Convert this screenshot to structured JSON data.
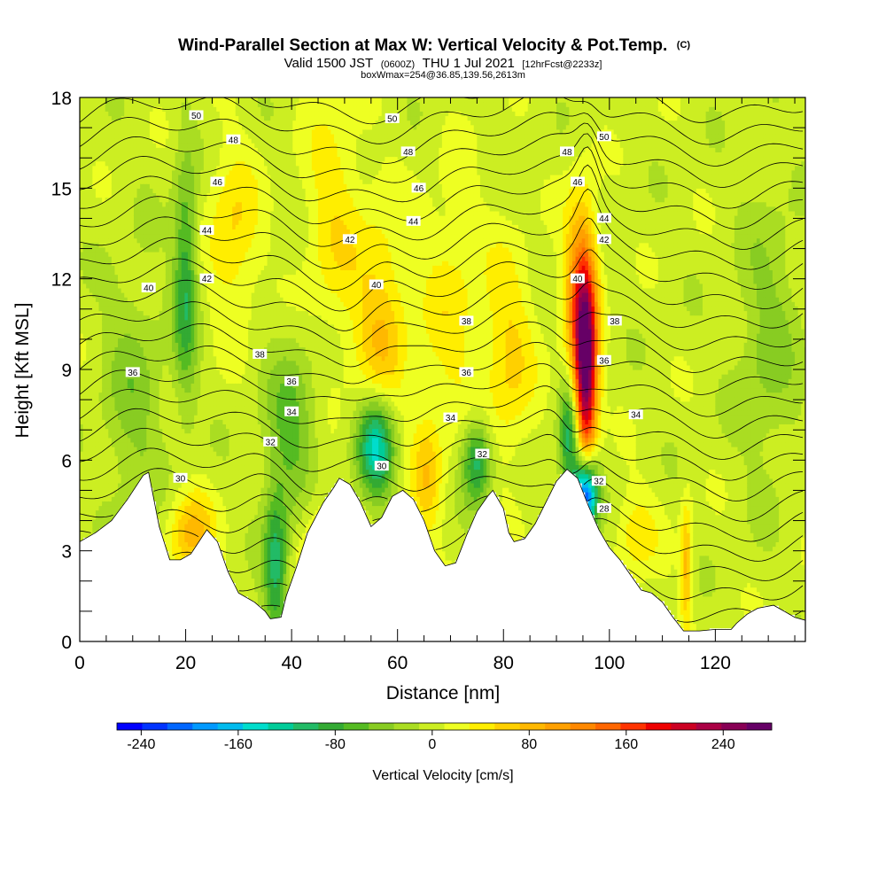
{
  "chart_data": {
    "type": "heatmap",
    "title": "Wind-Parallel Section at Max W: Vertical Velocity & Pot.Temp.",
    "title_mark": "(C)",
    "subtitle_valid": "Valid 1500 JST",
    "subtitle_utc": "(0600Z)",
    "subtitle_date": "THU 1 Jul 2021",
    "subtitle_fcst": "[12hrFcst@2233z]",
    "subtitle_box": "boxWmax=254@36.85,139.56,2613m",
    "xlabel": "Distance [nm]",
    "ylabel": "Height [Kft MSL]",
    "xlim": [
      0,
      137
    ],
    "ylim": [
      0,
      18
    ],
    "x_ticks": [
      0,
      20,
      40,
      60,
      80,
      100,
      120
    ],
    "y_ticks": [
      0,
      3,
      6,
      9,
      12,
      15,
      18
    ],
    "x_tick_labels": [
      "0",
      "20",
      "40",
      "60",
      "80",
      "100",
      "120"
    ],
    "y_tick_labels": [
      "0",
      "3",
      "6",
      "9",
      "12",
      "15",
      "18"
    ],
    "colorbar": {
      "title": "Vertical Velocity [cm/s]",
      "range": [
        -260,
        280
      ],
      "ticks": [
        -240,
        -160,
        -80,
        0,
        80,
        160,
        240
      ],
      "tick_labels": [
        "-240",
        "-160",
        "-80",
        "0",
        "80",
        "160",
        "240"
      ],
      "colors": [
        "#0000ff",
        "#0033ff",
        "#0066ff",
        "#0099ff",
        "#00bbee",
        "#00ddcc",
        "#00cc99",
        "#22bb66",
        "#33aa33",
        "#55bb22",
        "#88cc22",
        "#aadd22",
        "#ccee22",
        "#eeff22",
        "#ffee00",
        "#ffd000",
        "#ffb800",
        "#ffa000",
        "#ff8800",
        "#ff6600",
        "#ff3300",
        "#ee0000",
        "#cc0022",
        "#aa0044",
        "#880055",
        "#660066"
      ]
    },
    "terrain": [
      [
        0,
        3.3
      ],
      [
        3,
        3.6
      ],
      [
        6,
        4.0
      ],
      [
        9,
        4.7
      ],
      [
        12,
        5.5
      ],
      [
        13,
        5.6
      ],
      [
        15,
        3.8
      ],
      [
        17,
        2.7
      ],
      [
        19,
        2.7
      ],
      [
        21,
        2.9
      ],
      [
        24,
        3.7
      ],
      [
        26,
        3.3
      ],
      [
        28,
        2.3
      ],
      [
        30,
        1.6
      ],
      [
        33,
        1.3
      ],
      [
        35,
        1.0
      ],
      [
        36,
        0.75
      ],
      [
        38,
        0.8
      ],
      [
        39,
        1.5
      ],
      [
        41,
        2.5
      ],
      [
        43,
        3.6
      ],
      [
        46,
        4.6
      ],
      [
        48,
        5.1
      ],
      [
        49,
        5.4
      ],
      [
        51,
        5.2
      ],
      [
        53,
        4.6
      ],
      [
        55,
        3.8
      ],
      [
        57,
        4.1
      ],
      [
        59,
        4.8
      ],
      [
        61,
        5.0
      ],
      [
        63,
        4.7
      ],
      [
        65,
        4.0
      ],
      [
        67,
        3.0
      ],
      [
        69,
        2.5
      ],
      [
        71,
        2.6
      ],
      [
        73,
        3.5
      ],
      [
        75,
        4.3
      ],
      [
        77,
        4.8
      ],
      [
        78,
        5.0
      ],
      [
        80,
        4.4
      ],
      [
        81,
        3.6
      ],
      [
        82,
        3.3
      ],
      [
        84,
        3.4
      ],
      [
        86,
        3.9
      ],
      [
        88,
        4.6
      ],
      [
        90,
        5.3
      ],
      [
        92,
        5.7
      ],
      [
        94,
        5.4
      ],
      [
        96,
        4.5
      ],
      [
        98,
        3.7
      ],
      [
        100,
        3.1
      ],
      [
        102,
        2.7
      ],
      [
        104,
        2.2
      ],
      [
        106,
        1.7
      ],
      [
        108,
        1.6
      ],
      [
        110,
        1.3
      ],
      [
        112,
        0.8
      ],
      [
        114,
        0.35
      ],
      [
        117,
        0.35
      ],
      [
        120,
        0.4
      ],
      [
        123,
        0.4
      ],
      [
        124,
        0.6
      ],
      [
        126,
        0.9
      ],
      [
        128,
        1.1
      ],
      [
        131,
        1.2
      ],
      [
        133,
        1.0
      ],
      [
        135,
        0.8
      ],
      [
        137,
        0.7
      ]
    ],
    "w_features": [
      {
        "x": 95.5,
        "z": 8.8,
        "amp": 250,
        "sx": 1.5,
        "sz": 2.3
      },
      {
        "x": 94.5,
        "z": 11.5,
        "amp": 120,
        "sx": 2.2,
        "sz": 2.2
      },
      {
        "x": 95.5,
        "z": 4.9,
        "amp": -260,
        "sx": 1.6,
        "sz": 0.9
      },
      {
        "x": 92.5,
        "z": 6.8,
        "amp": -120,
        "sx": 1.4,
        "sz": 1.3
      },
      {
        "x": 57.0,
        "z": 10.3,
        "amp": 70,
        "sx": 3.5,
        "sz": 2.5
      },
      {
        "x": 56.0,
        "z": 6.5,
        "amp": -150,
        "sx": 2.5,
        "sz": 1.2
      },
      {
        "x": 75.0,
        "z": 6.0,
        "amp": -110,
        "sx": 2.0,
        "sz": 1.0
      },
      {
        "x": 20.0,
        "z": 12.0,
        "amp": -90,
        "sx": 1.6,
        "sz": 2.8
      },
      {
        "x": 21.0,
        "z": 3.6,
        "amp": 80,
        "sx": 3.0,
        "sz": 1.0
      },
      {
        "x": 37.0,
        "z": 2.5,
        "amp": -100,
        "sx": 1.6,
        "sz": 1.8
      },
      {
        "x": 40.0,
        "z": 7.0,
        "amp": -60,
        "sx": 3.5,
        "sz": 2.0
      },
      {
        "x": 29.0,
        "z": 13.5,
        "amp": 55,
        "sx": 3.5,
        "sz": 2.0
      },
      {
        "x": 65.5,
        "z": 5.5,
        "amp": 60,
        "sx": 2.0,
        "sz": 1.5
      },
      {
        "x": 45.0,
        "z": 2.5,
        "amp": 55,
        "sx": 2.5,
        "sz": 1.8
      },
      {
        "x": 81.0,
        "z": 9.5,
        "amp": 55,
        "sx": 3.5,
        "sz": 2.5
      },
      {
        "x": 114.5,
        "z": 2.5,
        "amp": 80,
        "sx": 0.8,
        "sz": 1.5
      },
      {
        "x": 105.0,
        "z": 3.6,
        "amp": 45,
        "sx": 3.0,
        "sz": 1.0
      },
      {
        "x": 70.0,
        "z": 11.0,
        "amp": 40,
        "sx": 4.0,
        "sz": 3.0
      },
      {
        "x": 130.0,
        "z": 10.0,
        "amp": -40,
        "sx": 4.0,
        "sz": 3.0
      },
      {
        "x": 10.0,
        "z": 8.0,
        "amp": -40,
        "sx": 4.0,
        "sz": 3.0
      },
      {
        "x": 48.0,
        "z": 14.0,
        "amp": 45,
        "sx": 4.0,
        "sz": 3.0
      }
    ],
    "theta_contours": {
      "min": 26,
      "max": 52,
      "interval": 1,
      "labels": [
        {
          "text": "50",
          "x": 22,
          "z": 17.4
        },
        {
          "text": "50",
          "x": 59,
          "z": 17.3
        },
        {
          "text": "50",
          "x": 99,
          "z": 16.7
        },
        {
          "text": "48",
          "x": 29,
          "z": 16.6
        },
        {
          "text": "48",
          "x": 62,
          "z": 16.2
        },
        {
          "text": "48",
          "x": 92,
          "z": 16.2
        },
        {
          "text": "46",
          "x": 26,
          "z": 15.2
        },
        {
          "text": "46",
          "x": 64,
          "z": 15.0
        },
        {
          "text": "46",
          "x": 94,
          "z": 15.2
        },
        {
          "text": "44",
          "x": 24,
          "z": 13.6
        },
        {
          "text": "44",
          "x": 63,
          "z": 13.9
        },
        {
          "text": "44",
          "x": 99,
          "z": 14.0
        },
        {
          "text": "42",
          "x": 24,
          "z": 12.0
        },
        {
          "text": "42",
          "x": 51,
          "z": 13.3
        },
        {
          "text": "42",
          "x": 99,
          "z": 13.3
        },
        {
          "text": "40",
          "x": 13,
          "z": 11.7
        },
        {
          "text": "40",
          "x": 56,
          "z": 11.8
        },
        {
          "text": "40",
          "x": 94,
          "z": 12.0
        },
        {
          "text": "38",
          "x": 34,
          "z": 9.5
        },
        {
          "text": "38",
          "x": 73,
          "z": 10.6
        },
        {
          "text": "38",
          "x": 101,
          "z": 10.6
        },
        {
          "text": "36",
          "x": 10,
          "z": 8.9
        },
        {
          "text": "36",
          "x": 40,
          "z": 8.6
        },
        {
          "text": "36",
          "x": 73,
          "z": 8.9
        },
        {
          "text": "36",
          "x": 99,
          "z": 9.3
        },
        {
          "text": "34",
          "x": 40,
          "z": 7.6
        },
        {
          "text": "34",
          "x": 70,
          "z": 7.4
        },
        {
          "text": "34",
          "x": 105,
          "z": 7.5
        },
        {
          "text": "32",
          "x": 36,
          "z": 6.6
        },
        {
          "text": "32",
          "x": 76,
          "z": 6.2
        },
        {
          "text": "32",
          "x": 98,
          "z": 5.3
        },
        {
          "text": "30",
          "x": 19,
          "z": 5.4
        },
        {
          "text": "30",
          "x": 57,
          "z": 5.8
        },
        {
          "text": "28",
          "x": 99,
          "z": 4.4
        }
      ]
    }
  }
}
